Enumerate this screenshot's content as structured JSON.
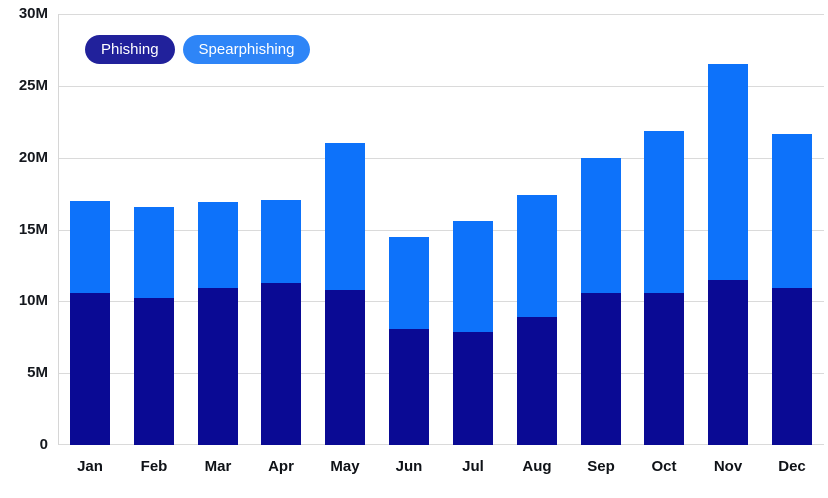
{
  "chart_data": {
    "type": "bar",
    "stacked": true,
    "title": "",
    "xlabel": "",
    "ylabel": "",
    "unit": "M",
    "categories": [
      "Jan",
      "Feb",
      "Mar",
      "Apr",
      "May",
      "Jun",
      "Jul",
      "Aug",
      "Sep",
      "Oct",
      "Nov",
      "Dec"
    ],
    "series": [
      {
        "name": "Phishing",
        "color": "#0a0a94",
        "values": [
          10.6,
          10.2,
          10.9,
          11.3,
          10.8,
          8.1,
          7.9,
          8.9,
          10.6,
          10.6,
          11.5,
          10.9
        ]
      },
      {
        "name": "Spearphishing",
        "color": "#0d72fa",
        "values": [
          6.4,
          6.3,
          6.0,
          5.8,
          10.2,
          6.4,
          7.7,
          8.5,
          9.4,
          11.3,
          15.0,
          10.7
        ]
      }
    ],
    "totals": [
      17.0,
      16.5,
      16.9,
      17.1,
      21.0,
      14.5,
      15.6,
      17.4,
      20.0,
      21.9,
      26.5,
      21.6
    ],
    "ylim": [
      0,
      30
    ],
    "ytick_step": 5,
    "ytick_labels": [
      "0",
      "5M",
      "10M",
      "15M",
      "20M",
      "25M",
      "30M"
    ],
    "grid": true,
    "legend_position": "top-left"
  },
  "legend": {
    "items": [
      {
        "label": "Phishing",
        "color": "#21219b"
      },
      {
        "label": "Spearphishing",
        "color": "#2e85f7"
      }
    ]
  },
  "colors": {
    "background": "#ffffff",
    "gridline": "#dadada",
    "axis_line": "#d6d6d6",
    "tick_text": "#15181e",
    "month_text": "#0f1217",
    "legend_text": "#ffffff"
  }
}
